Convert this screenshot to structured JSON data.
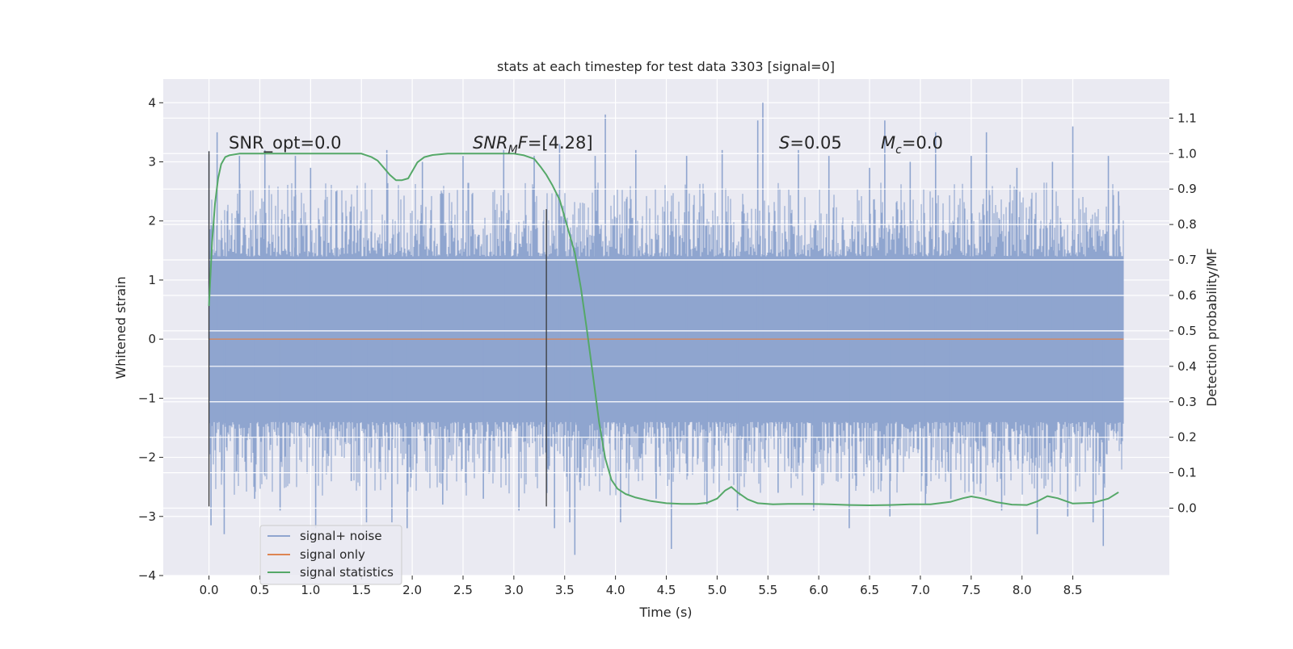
{
  "chart_data": {
    "type": "line",
    "title": "stats at each timestep for test data 3303 [signal=0]",
    "xlabel": "Time (s)",
    "ylabel_left": "Whitened strain",
    "ylabel_right": "Detection probability/MF",
    "xlim": [
      -0.45,
      9.45
    ],
    "ylim_left": [
      -4.0,
      4.4
    ],
    "ylim_right": [
      -0.19,
      1.21
    ],
    "x_ticks": [
      0.0,
      0.5,
      1.0,
      1.5,
      2.0,
      2.5,
      3.0,
      3.5,
      4.0,
      4.5,
      5.0,
      5.5,
      6.0,
      6.5,
      7.0,
      7.5,
      8.0,
      8.5
    ],
    "x_tick_labels": [
      "0.0",
      "0.5",
      "1.0",
      "1.5",
      "2.0",
      "2.5",
      "3.0",
      "3.5",
      "4.0",
      "4.5",
      "5.0",
      "5.5",
      "6.0",
      "6.5",
      "7.0",
      "7.5",
      "8.0",
      "8.5"
    ],
    "y_left_ticks": [
      4,
      3,
      2,
      1,
      0,
      -1,
      -2,
      -3,
      -4
    ],
    "y_left_tick_labels": [
      "4",
      "3",
      "2",
      "1",
      "0",
      "−1",
      "−2",
      "−3",
      "−4"
    ],
    "y_right_ticks": [
      1.1,
      1.0,
      0.9,
      0.8,
      0.7,
      0.6,
      0.5,
      0.4,
      0.3,
      0.2,
      0.1,
      0.0
    ],
    "y_right_tick_labels": [
      "1.1",
      "1.0",
      "0.9",
      "0.8",
      "0.7",
      "0.6",
      "0.5",
      "0.4",
      "0.3",
      "0.2",
      "0.1",
      "0.0"
    ],
    "grid": true,
    "legend_position": "bottom-left",
    "annotations": {
      "snr_opt": "SNR_opt=0.0",
      "snr_mf_sym": "SNR",
      "snr_mf_sub": "M",
      "snr_mf_rest": "F=[4.28]",
      "s_sym": "S",
      "s_rest": "=0.05",
      "mc_sym": "M",
      "mc_sub": "c",
      "mc_rest": "=0.0"
    },
    "vertical_markers": [
      {
        "x": 0.0,
        "y_range": [
          -2.83,
          3.18
        ]
      },
      {
        "x": 3.32,
        "y_range": [
          -2.83,
          2.2
        ]
      }
    ],
    "series": [
      {
        "name": "signal+ noise",
        "color": "#8fa5cf",
        "axis": "left",
        "x_range": [
          0.0,
          9.0
        ],
        "band_ylim": [
          -1.4,
          1.4
        ],
        "spike_peaks": [
          {
            "x": 0.0,
            "y": 3.18
          },
          {
            "x": 0.02,
            "y": -3.15
          },
          {
            "x": 0.08,
            "y": 3.5
          },
          {
            "x": 0.15,
            "y": -3.3
          },
          {
            "x": 0.3,
            "y": 3.1
          },
          {
            "x": 0.45,
            "y": -2.7
          },
          {
            "x": 0.55,
            "y": 3.2
          },
          {
            "x": 0.7,
            "y": -2.9
          },
          {
            "x": 0.85,
            "y": 3.1
          },
          {
            "x": 1.0,
            "y": 2.9
          },
          {
            "x": 1.05,
            "y": -3.2
          },
          {
            "x": 1.25,
            "y": 2.5
          },
          {
            "x": 1.4,
            "y": -2.4
          },
          {
            "x": 1.55,
            "y": -3.1
          },
          {
            "x": 1.75,
            "y": 3.2
          },
          {
            "x": 1.8,
            "y": -3.1
          },
          {
            "x": 1.95,
            "y": -3.2
          },
          {
            "x": 2.1,
            "y": 3.0
          },
          {
            "x": 2.3,
            "y": -2.8
          },
          {
            "x": 2.5,
            "y": 3.1
          },
          {
            "x": 2.7,
            "y": -2.7
          },
          {
            "x": 2.9,
            "y": 3.2
          },
          {
            "x": 3.05,
            "y": -2.9
          },
          {
            "x": 3.2,
            "y": 3.1
          },
          {
            "x": 3.4,
            "y": -3.2
          },
          {
            "x": 3.45,
            "y": 3.3
          },
          {
            "x": 3.55,
            "y": -3.1
          },
          {
            "x": 3.6,
            "y": -3.65
          },
          {
            "x": 3.8,
            "y": 3.1
          },
          {
            "x": 3.9,
            "y": 3.8
          },
          {
            "x": 4.05,
            "y": -3.1
          },
          {
            "x": 4.2,
            "y": 3.2
          },
          {
            "x": 4.4,
            "y": -2.7
          },
          {
            "x": 4.55,
            "y": -3.55
          },
          {
            "x": 4.7,
            "y": 3.1
          },
          {
            "x": 4.9,
            "y": -2.8
          },
          {
            "x": 5.05,
            "y": 3.2
          },
          {
            "x": 5.2,
            "y": -2.9
          },
          {
            "x": 5.4,
            "y": 3.7
          },
          {
            "x": 5.45,
            "y": 4.0
          },
          {
            "x": 5.6,
            "y": -2.6
          },
          {
            "x": 5.8,
            "y": 3.2
          },
          {
            "x": 5.95,
            "y": -2.9
          },
          {
            "x": 6.1,
            "y": 3.1
          },
          {
            "x": 6.3,
            "y": -3.2
          },
          {
            "x": 6.5,
            "y": 2.9
          },
          {
            "x": 6.65,
            "y": 3.7
          },
          {
            "x": 6.7,
            "y": -3.0
          },
          {
            "x": 6.9,
            "y": 3.0
          },
          {
            "x": 7.05,
            "y": -2.8
          },
          {
            "x": 7.15,
            "y": 3.5
          },
          {
            "x": 7.3,
            "y": -2.7
          },
          {
            "x": 7.5,
            "y": 3.1
          },
          {
            "x": 7.65,
            "y": 3.5
          },
          {
            "x": 7.8,
            "y": -2.9
          },
          {
            "x": 7.95,
            "y": 2.9
          },
          {
            "x": 8.15,
            "y": -3.3
          },
          {
            "x": 8.3,
            "y": 3.0
          },
          {
            "x": 8.45,
            "y": -3.0
          },
          {
            "x": 8.5,
            "y": 3.6
          },
          {
            "x": 8.7,
            "y": -3.1
          },
          {
            "x": 8.8,
            "y": -3.5
          },
          {
            "x": 8.85,
            "y": 3.1
          },
          {
            "x": 8.95,
            "y": 2.5
          }
        ]
      },
      {
        "name": "signal only",
        "color": "#dd8452",
        "axis": "left",
        "x": [
          0.0,
          9.0
        ],
        "y": [
          0.0,
          0.0
        ]
      },
      {
        "name": "signal statistics",
        "color": "#55a868",
        "axis": "right",
        "x": [
          0.0,
          0.03,
          0.06,
          0.09,
          0.12,
          0.16,
          0.2,
          0.3,
          0.5,
          0.8,
          1.0,
          1.2,
          1.4,
          1.5,
          1.6,
          1.66,
          1.72,
          1.78,
          1.84,
          1.9,
          1.96,
          2.0,
          2.05,
          2.12,
          2.2,
          2.35,
          2.5,
          2.8,
          3.0,
          3.1,
          3.2,
          3.27,
          3.32,
          3.38,
          3.45,
          3.52,
          3.6,
          3.66,
          3.72,
          3.78,
          3.84,
          3.9,
          3.96,
          4.02,
          4.1,
          4.2,
          4.35,
          4.5,
          4.65,
          4.8,
          4.9,
          5.0,
          5.08,
          5.14,
          5.2,
          5.3,
          5.4,
          5.55,
          5.7,
          5.9,
          6.1,
          6.3,
          6.5,
          6.7,
          6.9,
          7.1,
          7.3,
          7.42,
          7.5,
          7.6,
          7.75,
          7.9,
          8.05,
          8.15,
          8.25,
          8.35,
          8.5,
          8.7,
          8.85,
          8.95
        ],
        "y": [
          0.57,
          0.75,
          0.86,
          0.93,
          0.97,
          0.99,
          0.995,
          1.0,
          1.0,
          1.0,
          1.0,
          1.0,
          1.0,
          1.0,
          0.99,
          0.98,
          0.96,
          0.94,
          0.925,
          0.925,
          0.93,
          0.95,
          0.975,
          0.99,
          0.996,
          1.0,
          1.0,
          1.0,
          1.0,
          0.995,
          0.985,
          0.96,
          0.94,
          0.91,
          0.87,
          0.8,
          0.72,
          0.62,
          0.5,
          0.37,
          0.24,
          0.14,
          0.08,
          0.055,
          0.04,
          0.03,
          0.02,
          0.014,
          0.012,
          0.012,
          0.015,
          0.027,
          0.05,
          0.06,
          0.045,
          0.025,
          0.014,
          0.011,
          0.012,
          0.012,
          0.011,
          0.009,
          0.008,
          0.009,
          0.011,
          0.011,
          0.018,
          0.028,
          0.033,
          0.028,
          0.017,
          0.01,
          0.009,
          0.019,
          0.034,
          0.028,
          0.013,
          0.015,
          0.027,
          0.045
        ]
      }
    ]
  }
}
